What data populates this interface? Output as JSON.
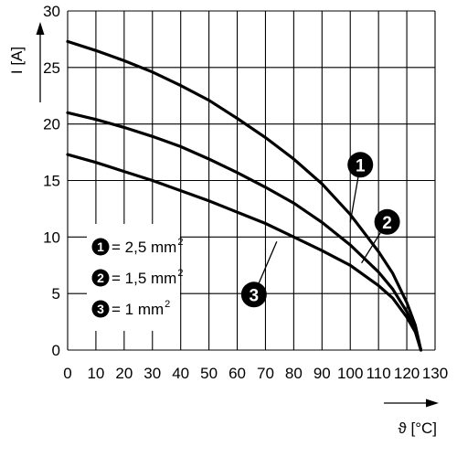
{
  "chart_data": {
    "type": "line",
    "title": "",
    "xlabel": "ϑ [°C]",
    "ylabel": "I [A]",
    "xlim": [
      0,
      130
    ],
    "ylim": [
      0,
      30
    ],
    "x_ticks": [
      "0",
      "10",
      "20",
      "30",
      "40",
      "50",
      "60",
      "70",
      "80",
      "90",
      "100",
      "110",
      "120",
      "130"
    ],
    "y_ticks": [
      "0",
      "5",
      "10",
      "15",
      "20",
      "25",
      "30"
    ],
    "grid": true,
    "series": [
      {
        "name": "1",
        "legend_value": "= 2,5 mm",
        "legend_sup": "2",
        "points": [
          [
            0,
            27.3
          ],
          [
            10,
            26.5
          ],
          [
            20,
            25.6
          ],
          [
            30,
            24.6
          ],
          [
            40,
            23.4
          ],
          [
            50,
            22.1
          ],
          [
            60,
            20.5
          ],
          [
            70,
            18.8
          ],
          [
            80,
            16.9
          ],
          [
            90,
            14.7
          ],
          [
            100,
            12.0
          ],
          [
            110,
            8.7
          ],
          [
            115,
            6.8
          ],
          [
            120,
            4.2
          ],
          [
            123,
            2.2
          ],
          [
            125,
            0
          ]
        ]
      },
      {
        "name": "2",
        "legend_value": "= 1,5 mm",
        "legend_sup": "2",
        "points": [
          [
            0,
            21.0
          ],
          [
            10,
            20.4
          ],
          [
            20,
            19.7
          ],
          [
            30,
            18.9
          ],
          [
            40,
            18.0
          ],
          [
            50,
            16.9
          ],
          [
            60,
            15.7
          ],
          [
            70,
            14.4
          ],
          [
            80,
            13.0
          ],
          [
            90,
            11.3
          ],
          [
            100,
            9.3
          ],
          [
            110,
            6.9
          ],
          [
            115,
            5.4
          ],
          [
            120,
            3.4
          ],
          [
            123,
            1.8
          ],
          [
            125,
            0
          ]
        ]
      },
      {
        "name": "3",
        "legend_value": "= 1 mm",
        "legend_sup": "2",
        "points": [
          [
            0,
            17.3
          ],
          [
            10,
            16.6
          ],
          [
            20,
            15.8
          ],
          [
            30,
            15.0
          ],
          [
            40,
            14.1
          ],
          [
            50,
            13.2
          ],
          [
            60,
            12.2
          ],
          [
            70,
            11.2
          ],
          [
            80,
            10.0
          ],
          [
            90,
            8.8
          ],
          [
            100,
            7.5
          ],
          [
            110,
            5.7
          ],
          [
            115,
            4.6
          ],
          [
            120,
            2.9
          ],
          [
            123,
            1.6
          ],
          [
            125,
            0
          ]
        ]
      }
    ],
    "annotations": [
      {
        "label": "1",
        "x": 100,
        "y": 11.3
      },
      {
        "label": "2",
        "x": 104,
        "y": 7.7
      },
      {
        "label": "3",
        "x": 74,
        "y": 9.6
      }
    ]
  }
}
